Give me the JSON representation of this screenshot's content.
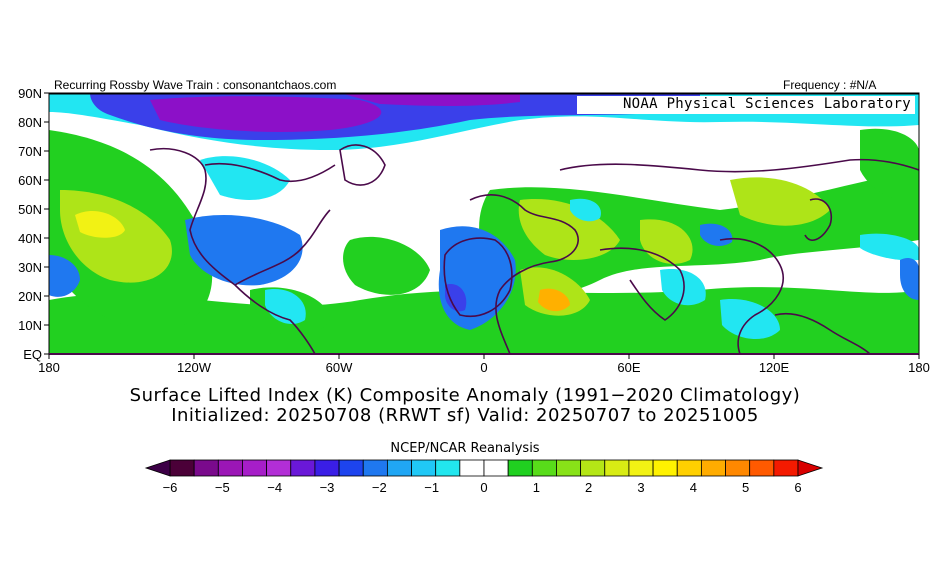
{
  "header": {
    "left_text": "Recurring Rossby Wave Train : consonantchaos.com",
    "right_text": "Frequency : #N/A"
  },
  "map": {
    "credit": "NOAA Physical Sciences Laboratory",
    "lat_ticks": [
      "90N",
      "80N",
      "70N",
      "60N",
      "50N",
      "40N",
      "30N",
      "20N",
      "10N",
      "EQ"
    ],
    "lon_ticks": [
      "180",
      "120W",
      "60W",
      "0",
      "60E",
      "120E",
      "180"
    ]
  },
  "title": {
    "line1": "Surface Lifted Index (K) Composite Anomaly (1991−2020 Climatology)",
    "line2": "Initialized: 20250708 (RRWT sf) Valid: 20250707 to 20251005"
  },
  "source": "NCEP/NCAR Reanalysis",
  "colorbar": {
    "labels": [
      "−6",
      "−5",
      "−4",
      "−3",
      "−2",
      "−1",
      "0",
      "1",
      "2",
      "3",
      "4",
      "5",
      "6"
    ],
    "colors": [
      "#4b0038",
      "#7a0a8c",
      "#9b16b6",
      "#a61ec8",
      "#b22ed6",
      "#6a18d8",
      "#3a1ee6",
      "#1d44ee",
      "#1f78f0",
      "#20a6f4",
      "#20c8f6",
      "#22e6ee",
      "#ffffff",
      "#ffffff",
      "#20d020",
      "#58dc1a",
      "#88e218",
      "#b4e616",
      "#d8ec14",
      "#f2f214",
      "#fff200",
      "#ffd000",
      "#ffac00",
      "#ff8800",
      "#ff5a00",
      "#f41a00"
    ],
    "low_color": "#3c0046",
    "high_color": "#d80000"
  },
  "palette": {
    "border": "#4a0a4a",
    "neg_strong": "#8c10c8",
    "neg_mid": "#3a40ea",
    "neg_weak": "#1f78f0",
    "neg_light": "#22e6f2",
    "pos_light": "#22d020",
    "pos_mid": "#aee418",
    "pos_strong": "#f2f214",
    "pos_hot": "#ffb000"
  }
}
